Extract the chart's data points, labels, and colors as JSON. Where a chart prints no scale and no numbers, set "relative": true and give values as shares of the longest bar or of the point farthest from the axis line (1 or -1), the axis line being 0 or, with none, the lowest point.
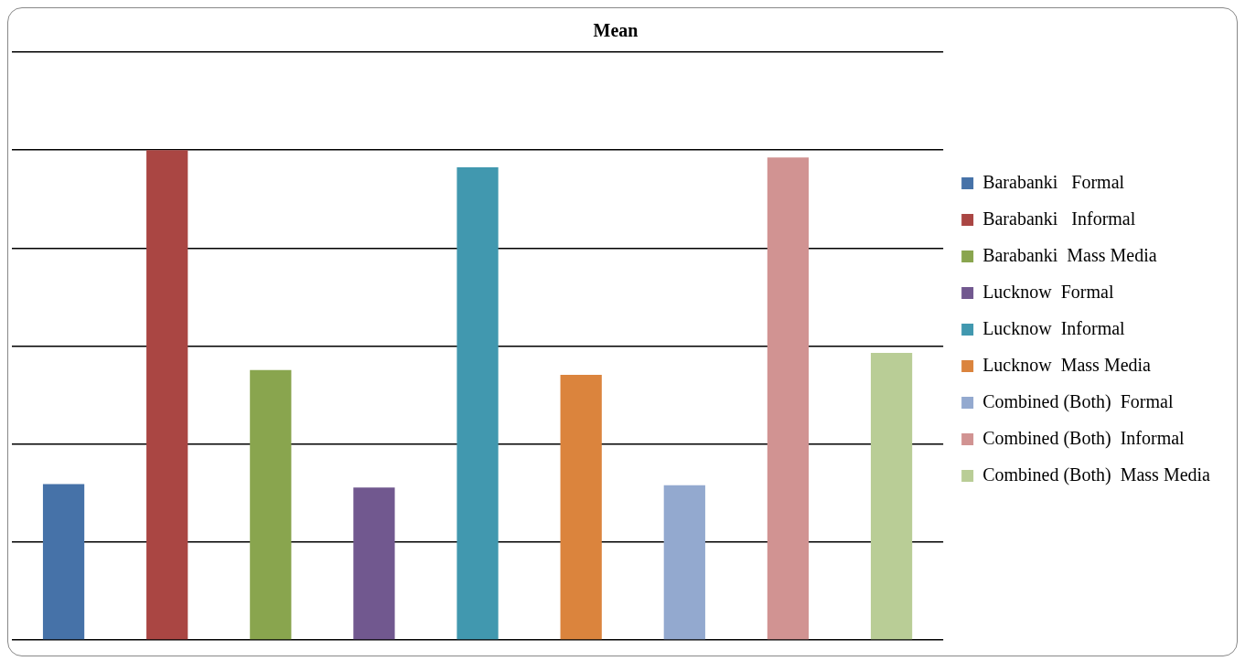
{
  "chart_data": {
    "type": "bar",
    "title": "Mean",
    "relative": true,
    "stacked": true,
    "categories": [
      null,
      null,
      null,
      null,
      null,
      null,
      null,
      null,
      null
    ],
    "series": [
      {
        "name": "Barabanki   Formal",
        "color": "#4672a8",
        "values": [
          0.318,
          null,
          null,
          null,
          null,
          null,
          null,
          null,
          null
        ]
      },
      {
        "name": "Barabanki   Informal",
        "color": "#aa4643",
        "values": [
          null,
          1,
          null,
          null,
          null,
          null,
          null,
          null,
          null
        ]
      },
      {
        "name": "Barabanki  Mass Media",
        "color": "#89a54e",
        "values": [
          null,
          null,
          0.551,
          null,
          null,
          null,
          null,
          null,
          null
        ]
      },
      {
        "name": "Lucknow  Formal",
        "color": "#71588f",
        "values": [
          null,
          null,
          null,
          0.311,
          null,
          null,
          null,
          null,
          null
        ]
      },
      {
        "name": "Lucknow  Informal",
        "color": "#4198af",
        "values": [
          null,
          null,
          null,
          null,
          0.965,
          null,
          null,
          null,
          null
        ]
      },
      {
        "name": "Lucknow  Mass Media",
        "color": "#db843d",
        "values": [
          null,
          null,
          null,
          null,
          null,
          0.541,
          null,
          null,
          null
        ]
      },
      {
        "name": "Combined (Both)  Formal",
        "color": "#93a9cf",
        "values": [
          null,
          null,
          null,
          null,
          null,
          null,
          0.316,
          null,
          null
        ]
      },
      {
        "name": "Combined (Both)  Informal",
        "color": "#d19392",
        "values": [
          null,
          null,
          null,
          null,
          null,
          null,
          null,
          0.985,
          null
        ]
      },
      {
        "name": "Combined (Both)  Mass Media",
        "color": "#b9cd96",
        "values": [
          null,
          null,
          null,
          null,
          null,
          null,
          null,
          null,
          0.586
        ]
      }
    ],
    "grid": "y",
    "legend": "right"
  }
}
